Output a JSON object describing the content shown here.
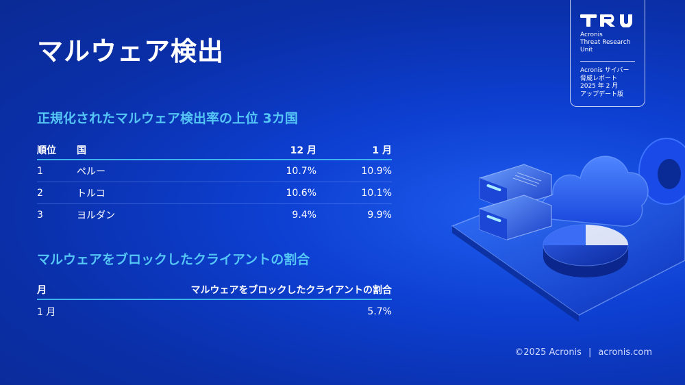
{
  "title": "マルウェア検出",
  "section1": {
    "title": "正規化されたマルウェア検出率の上位 3カ国",
    "headers": [
      "順位",
      "国",
      "12 月",
      "1 月"
    ],
    "rows": [
      [
        "1",
        "ペルー",
        "10.7%",
        "10.9%"
      ],
      [
        "2",
        "トルコ",
        "10.6%",
        "10.1%"
      ],
      [
        "3",
        "ヨルダン",
        "9.4%",
        "9.9%"
      ]
    ]
  },
  "section2": {
    "title": "マルウェアをブロックしたクライアントの割合",
    "headers": [
      "月",
      "マルウェアをブロックしたクライアントの割合"
    ],
    "rows": [
      [
        "1 月",
        "5.7%"
      ]
    ]
  },
  "badge": {
    "name": "Acronis\nThreat Research\nUnit",
    "note": "Acronis サイバー\n脅威レポート\n2025 年 2 月\nアップデート版"
  },
  "footer": {
    "copyright": "©2025 Acronis",
    "separator": "|",
    "website": "acronis.com"
  }
}
